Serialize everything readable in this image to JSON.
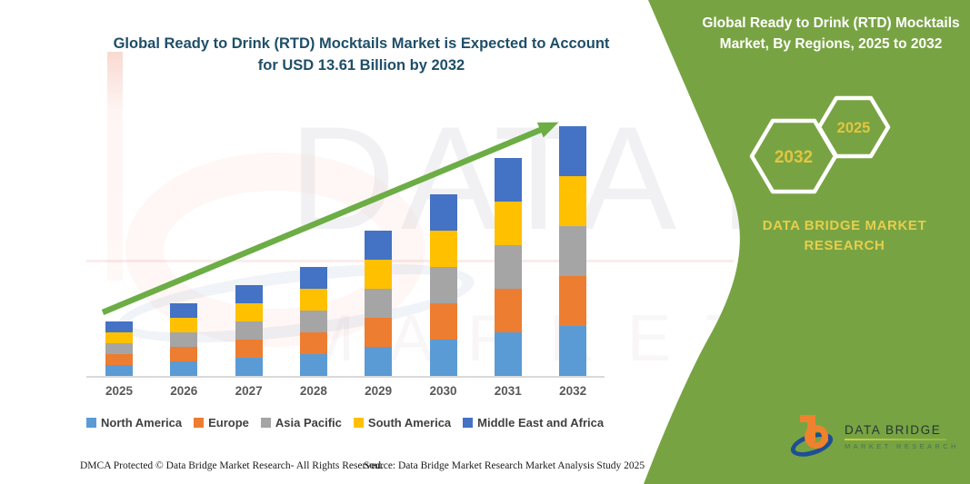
{
  "header": {
    "title_line1": "Global Ready to Drink (RTD) Mocktails Market is Expected to Account",
    "title_line2": "for USD 13.61 Billion by 2032"
  },
  "side_panel": {
    "title_line1": "Global Ready to Drink (RTD) Mocktails",
    "title_line2": "Market, By Regions, 2025 to 2032",
    "hexagons": [
      {
        "label": "2032"
      },
      {
        "label": "2025"
      }
    ],
    "brand_line1": "DATA BRIDGE MARKET",
    "brand_line2": "RESEARCH",
    "colors": {
      "panel_green": "#78A343",
      "hex_text": "#E2C63E",
      "brand_text": "#E5CF4D"
    }
  },
  "chart_data": {
    "type": "bar",
    "stacked": true,
    "title": "Global Ready to Drink (RTD) Mocktails Market is Expected to Account for USD 13.61 Billion by 2032",
    "unit": "USD Billion",
    "categories": [
      "2025",
      "2026",
      "2027",
      "2028",
      "2029",
      "2030",
      "2031",
      "2032"
    ],
    "totals": [
      2.85,
      3.93,
      4.91,
      5.94,
      7.76,
      9.73,
      11.69,
      13.61
    ],
    "series": [
      {
        "name": "North America",
        "color": "#5B9BD5",
        "values": [
          0.57,
          0.79,
          0.98,
          1.19,
          1.55,
          1.95,
          2.34,
          2.72
        ]
      },
      {
        "name": "Europe",
        "color": "#ED7D31",
        "values": [
          0.57,
          0.79,
          0.98,
          1.19,
          1.55,
          1.95,
          2.34,
          2.72
        ]
      },
      {
        "name": "Asia Pacific",
        "color": "#A5A5A5",
        "values": [
          0.57,
          0.79,
          0.98,
          1.19,
          1.55,
          1.95,
          2.34,
          2.72
        ]
      },
      {
        "name": "South America",
        "color": "#FFC000",
        "values": [
          0.57,
          0.79,
          0.98,
          1.19,
          1.55,
          1.95,
          2.34,
          2.72
        ]
      },
      {
        "name": "Middle East and Africa",
        "color": "#4472C4",
        "values": [
          0.57,
          0.79,
          0.98,
          1.19,
          1.55,
          1.95,
          2.34,
          2.72
        ]
      }
    ],
    "ylim": [
      0,
      13.61
    ],
    "gridlines": false,
    "legend_position": "bottom",
    "trend_arrow": true,
    "arrow_color": "#6CAD45",
    "key_value_label": "USD 13.61 Billion by 2032"
  },
  "watermark": {
    "line1": "DATA BRIDGE",
    "line2": "MARKET RESEARCH"
  },
  "footer": {
    "dmca": "DMCA Protected © Data Bridge Market Research- All Rights Reserved.",
    "source": "Source: Data Bridge Market Research  Market Analysis Study 2025"
  },
  "logo": {
    "wordmark": "DATA BRIDGE",
    "subtext": "MARKET RESEARCH"
  }
}
